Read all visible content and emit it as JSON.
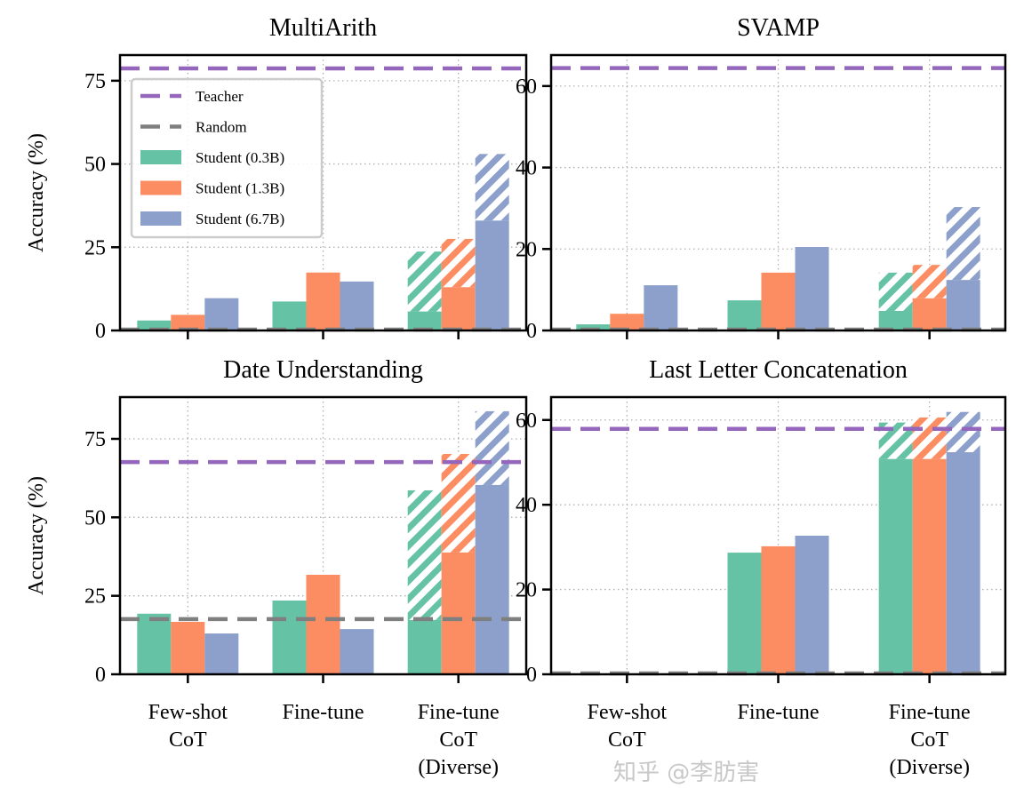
{
  "chart_data": [
    {
      "type": "bar",
      "title": "MultiArith",
      "ylabel": "Accuracy (%)",
      "ylim": [
        0,
        82.7
      ],
      "yticks": [
        0,
        25,
        50,
        75
      ],
      "teacher": 78.7,
      "random": 0,
      "categories": [
        "Few-shot CoT",
        "Fine-tune",
        "Fine-tune CoT (Diverse)"
      ],
      "series": [
        {
          "name": "Student (0.3B)",
          "values": [
            3.0,
            8.7,
            5.7
          ],
          "diverse_values": [
            null,
            null,
            23.7
          ]
        },
        {
          "name": "Student (1.3B)",
          "values": [
            4.7,
            17.4,
            13.0
          ],
          "diverse_values": [
            null,
            null,
            27.5
          ]
        },
        {
          "name": "Student (6.7B)",
          "values": [
            9.7,
            14.7,
            33.0
          ],
          "diverse_values": [
            null,
            null,
            53.0
          ]
        }
      ],
      "show_xticklabels": false,
      "show_legend": true
    },
    {
      "type": "bar",
      "title": "SVAMP",
      "ylabel": "",
      "ylim": [
        0,
        67.6
      ],
      "yticks": [
        0,
        20,
        40,
        60
      ],
      "teacher": 64.4,
      "random": 0,
      "categories": [
        "Few-shot CoT",
        "Fine-tune",
        "Fine-tune CoT (Diverse)"
      ],
      "series": [
        {
          "name": "Student (0.3B)",
          "values": [
            1.5,
            7.4,
            4.8
          ],
          "diverse_values": [
            null,
            null,
            14.2
          ]
        },
        {
          "name": "Student (1.3B)",
          "values": [
            4.1,
            14.2,
            7.9
          ],
          "diverse_values": [
            null,
            null,
            16.1
          ]
        },
        {
          "name": "Student (6.7B)",
          "values": [
            11.1,
            20.5,
            12.4
          ],
          "diverse_values": [
            null,
            null,
            30.3
          ]
        }
      ],
      "show_xticklabels": false,
      "show_legend": false
    },
    {
      "type": "bar",
      "title": "Date Understanding",
      "ylabel": "Accuracy (%)",
      "ylim": [
        0,
        88.3
      ],
      "yticks": [
        0,
        25,
        50,
        75
      ],
      "teacher": 67.6,
      "random": 17.3,
      "categories": [
        "Few-shot CoT",
        "Fine-tune",
        "Fine-tune CoT (Diverse)"
      ],
      "series": [
        {
          "name": "Student (0.3B)",
          "values": [
            19.3,
            23.5,
            17.3
          ],
          "diverse_values": [
            null,
            null,
            58.6
          ]
        },
        {
          "name": "Student (1.3B)",
          "values": [
            16.7,
            31.7,
            38.8
          ],
          "diverse_values": [
            null,
            null,
            70.2
          ]
        },
        {
          "name": "Student (6.7B)",
          "values": [
            13.0,
            14.4,
            60.3
          ],
          "diverse_values": [
            null,
            null,
            83.8
          ]
        }
      ],
      "show_xticklabels": true,
      "show_legend": false
    },
    {
      "type": "bar",
      "title": "Last Letter Concatenation",
      "ylabel": "",
      "ylim": [
        0,
        65.4
      ],
      "yticks": [
        0,
        20,
        40,
        60
      ],
      "teacher": 57.9,
      "random": 0,
      "categories": [
        "Few-shot CoT",
        "Fine-tune",
        "Fine-tune CoT (Diverse)"
      ],
      "series": [
        {
          "name": "Student (0.3B)",
          "values": [
            0,
            28.7,
            50.8
          ],
          "diverse_values": [
            null,
            null,
            59.4
          ]
        },
        {
          "name": "Student (1.3B)",
          "values": [
            0,
            30.2,
            50.8
          ],
          "diverse_values": [
            null,
            null,
            60.6
          ]
        },
        {
          "name": "Student (6.7B)",
          "values": [
            0,
            32.7,
            52.4
          ],
          "diverse_values": [
            null,
            null,
            61.9
          ]
        }
      ],
      "show_xticklabels": true,
      "show_legend": false
    }
  ],
  "xticklabels": [
    [
      "Few-shot",
      "CoT"
    ],
    [
      "Fine-tune"
    ],
    [
      "Fine-tune",
      "CoT",
      "(Diverse)"
    ]
  ],
  "legend": {
    "placement": "upper-left",
    "entries": [
      {
        "label": "Teacher",
        "kind": "dashed",
        "color": "#9467bd"
      },
      {
        "label": "Random",
        "kind": "dashed",
        "color": "#7f7f7f"
      },
      {
        "label": "Student (0.3B)",
        "kind": "patch",
        "color": "#66c2a5"
      },
      {
        "label": "Student (1.3B)",
        "kind": "patch",
        "color": "#fc8d62"
      },
      {
        "label": "Student (6.7B)",
        "kind": "patch",
        "color": "#8da0cb"
      }
    ]
  },
  "colors": {
    "teacher": "#9467bd",
    "random": "#7f7f7f",
    "series": [
      "#66c2a5",
      "#fc8d62",
      "#8da0cb"
    ],
    "grid": "#b0b0b0"
  },
  "grid": true,
  "watermark": "知乎 @李肪害"
}
